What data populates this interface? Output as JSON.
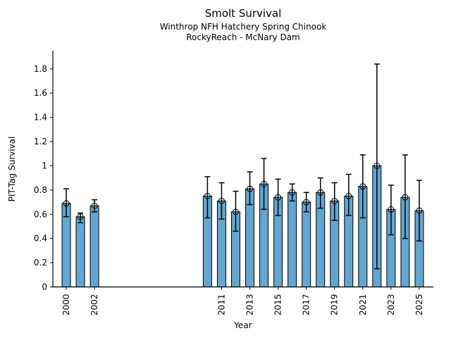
{
  "header": {
    "title": "Smolt Survival",
    "subtitle1": "Winthrop NFH Hatchery Spring Chinook",
    "subtitle2": "RockyReach - McNary Dam"
  },
  "chart_data": {
    "type": "bar",
    "title": "Smolt Survival",
    "subtitle": [
      "Winthrop NFH Hatchery Spring Chinook",
      "RockyReach - McNary Dam"
    ],
    "xlabel": "Year",
    "ylabel": "PIT-Tag Survival",
    "x": [
      2000,
      2001,
      2002,
      2010,
      2011,
      2012,
      2013,
      2014,
      2015,
      2016,
      2017,
      2018,
      2019,
      2020,
      2021,
      2022,
      2023,
      2024,
      2025
    ],
    "values": [
      0.69,
      0.58,
      0.67,
      0.75,
      0.71,
      0.62,
      0.81,
      0.85,
      0.74,
      0.78,
      0.7,
      0.78,
      0.71,
      0.75,
      0.83,
      1.0,
      0.64,
      0.74,
      0.63
    ],
    "error_low": [
      0.58,
      0.53,
      0.62,
      0.57,
      0.56,
      0.46,
      0.68,
      0.64,
      0.59,
      0.71,
      0.62,
      0.65,
      0.55,
      0.59,
      0.57,
      0.15,
      0.43,
      0.4,
      0.38
    ],
    "error_high": [
      0.81,
      0.61,
      0.72,
      0.91,
      0.86,
      0.79,
      0.95,
      1.06,
      0.89,
      0.85,
      0.78,
      0.9,
      0.86,
      0.93,
      1.09,
      1.84,
      0.84,
      1.09,
      0.88
    ],
    "xtick_labels": [
      "2000",
      "2002",
      "2011",
      "2013",
      "2015",
      "2017",
      "2019",
      "2021",
      "2023",
      "2025"
    ],
    "xtick_values": [
      2000,
      2002,
      2011,
      2013,
      2015,
      2017,
      2019,
      2021,
      2023,
      2025
    ],
    "ytick_labels": [
      "0",
      "0.2",
      "0.4",
      "0.6",
      "0.8",
      "1",
      "1.2",
      "1.4",
      "1.6",
      "1.8"
    ],
    "ytick_values": [
      0,
      0.2,
      0.4,
      0.6,
      0.8,
      1.0,
      1.2,
      1.4,
      1.6,
      1.8
    ],
    "xlim": [
      1999.05,
      2026.0
    ],
    "ylim": [
      0,
      1.95
    ],
    "grid": false,
    "legend": null,
    "marker": "open-circle",
    "error_caps": true,
    "bar_color": "#63a6d0",
    "bar_edge_color": "#000000",
    "error_color": "#000000",
    "axis_color": "#000000",
    "tick_label_rotation_x_deg": 90
  }
}
